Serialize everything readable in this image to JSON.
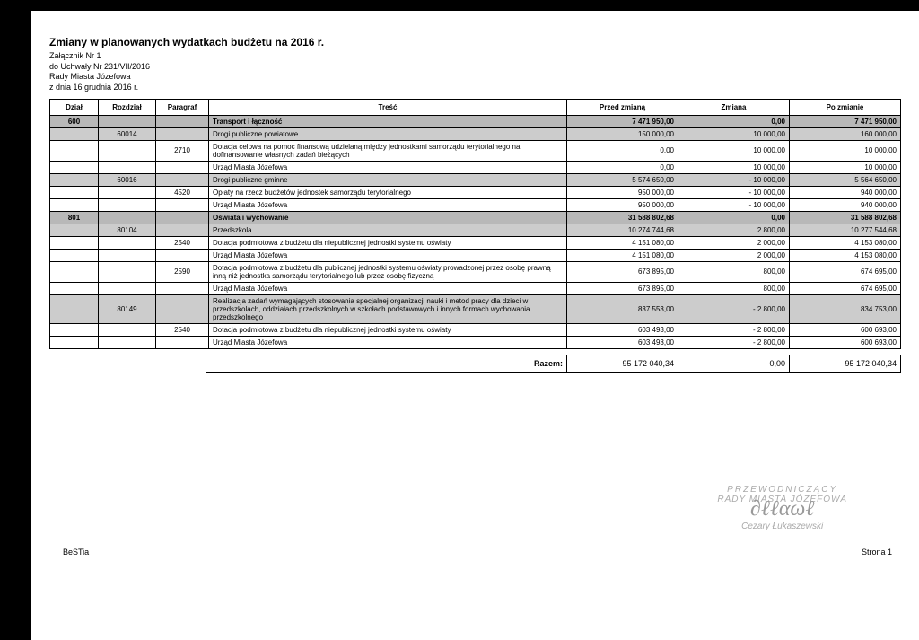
{
  "header": {
    "title": "Zmiany w planowanych wydatkach budżetu na 2016 r.",
    "lines": [
      "Załącznik Nr 1",
      "do Uchwały Nr 231/VII/2016",
      "Rady Miasta Józefowa",
      "z dnia 16 grudnia 2016 r."
    ]
  },
  "columns": {
    "dzial": "Dział",
    "rozdzial": "Rozdział",
    "paragraf": "Paragraf",
    "tresc": "Treść",
    "przed": "Przed zmianą",
    "zmiana": "Zmiana",
    "po": "Po zmianie"
  },
  "rows": [
    {
      "shade": "dark",
      "bold": true,
      "dzial": "600",
      "rozdzial": "",
      "paragraf": "",
      "tresc": "Transport i łączność",
      "przed": "7 471 950,00",
      "zmiana": "0,00",
      "po": "7 471 950,00"
    },
    {
      "shade": "med",
      "dzial": "",
      "rozdzial": "60014",
      "paragraf": "",
      "tresc": "Drogi publiczne powiatowe",
      "przed": "150 000,00",
      "zmiana": "10 000,00",
      "po": "160 000,00"
    },
    {
      "shade": "",
      "dzial": "",
      "rozdzial": "",
      "paragraf": "2710",
      "tresc": "Dotacja celowa na pomoc finansową udzielaną między jednostkami samorządu terytorialnego na dofinansowanie własnych zadań bieżących",
      "przed": "0,00",
      "zmiana": "10 000,00",
      "po": "10 000,00"
    },
    {
      "shade": "",
      "dzial": "",
      "rozdzial": "",
      "paragraf": "",
      "tresc": "Urząd Miasta Józefowa",
      "przed": "0,00",
      "zmiana": "10 000,00",
      "po": "10 000,00"
    },
    {
      "shade": "med",
      "dzial": "",
      "rozdzial": "60016",
      "paragraf": "",
      "tresc": "Drogi publiczne gminne",
      "przed": "5 574 650,00",
      "zmiana": "- 10 000,00",
      "po": "5 564 650,00"
    },
    {
      "shade": "",
      "dzial": "",
      "rozdzial": "",
      "paragraf": "4520",
      "tresc": "Opłaty na rzecz budżetów jednostek samorządu terytorialnego",
      "przed": "950 000,00",
      "zmiana": "- 10 000,00",
      "po": "940 000,00"
    },
    {
      "shade": "",
      "dzial": "",
      "rozdzial": "",
      "paragraf": "",
      "tresc": "Urząd Miasta Józefowa",
      "przed": "950 000,00",
      "zmiana": "- 10 000,00",
      "po": "940 000,00"
    },
    {
      "shade": "dark",
      "bold": true,
      "dzial": "801",
      "rozdzial": "",
      "paragraf": "",
      "tresc": "Oświata i wychowanie",
      "przed": "31 588 802,68",
      "zmiana": "0,00",
      "po": "31 588 802,68"
    },
    {
      "shade": "med",
      "dzial": "",
      "rozdzial": "80104",
      "paragraf": "",
      "tresc": "Przedszkola",
      "przed": "10 274 744,68",
      "zmiana": "2 800,00",
      "po": "10 277 544,68"
    },
    {
      "shade": "",
      "dzial": "",
      "rozdzial": "",
      "paragraf": "2540",
      "tresc": "Dotacja podmiotowa z budżetu dla niepublicznej jednostki systemu oświaty",
      "przed": "4 151 080,00",
      "zmiana": "2 000,00",
      "po": "4 153 080,00"
    },
    {
      "shade": "",
      "dzial": "",
      "rozdzial": "",
      "paragraf": "",
      "tresc": "Urząd Miasta Józefowa",
      "przed": "4 151 080,00",
      "zmiana": "2 000,00",
      "po": "4 153 080,00"
    },
    {
      "shade": "",
      "dzial": "",
      "rozdzial": "",
      "paragraf": "2590",
      "tresc": "Dotacja podmiotowa z budżetu dla publicznej jednostki systemu oświaty prowadzonej przez osobę prawną inną niż jednostka samorządu terytorialnego lub przez osobę fizyczną",
      "przed": "673 895,00",
      "zmiana": "800,00",
      "po": "674 695,00"
    },
    {
      "shade": "",
      "dzial": "",
      "rozdzial": "",
      "paragraf": "",
      "tresc": "Urząd Miasta Józefowa",
      "przed": "673 895,00",
      "zmiana": "800,00",
      "po": "674 695,00"
    },
    {
      "shade": "med",
      "dzial": "",
      "rozdzial": "80149",
      "paragraf": "",
      "tresc": "Realizacja zadań wymagających stosowania specjalnej organizacji nauki i metod pracy dla dzieci w przedszkolach, oddziałach przedszkolnych w szkołach podstawowych i innych formach wychowania przedszkolnego",
      "przed": "837 553,00",
      "zmiana": "- 2 800,00",
      "po": "834 753,00"
    },
    {
      "shade": "",
      "dzial": "",
      "rozdzial": "",
      "paragraf": "2540",
      "tresc": "Dotacja podmiotowa z budżetu dla niepublicznej jednostki systemu oświaty",
      "przed": "603 493,00",
      "zmiana": "- 2 800,00",
      "po": "600 693,00"
    },
    {
      "shade": "",
      "dzial": "",
      "rozdzial": "",
      "paragraf": "",
      "tresc": "Urząd Miasta Józefowa",
      "przed": "603 493,00",
      "zmiana": "- 2 800,00",
      "po": "600 693,00"
    }
  ],
  "totals": {
    "label": "Razem:",
    "przed": "95 172 040,34",
    "zmiana": "0,00",
    "po": "95 172 040,34"
  },
  "signature": {
    "line1": "PRZEWODNICZĄCY",
    "line2": "RADY MIASTA JÓZEFOWA",
    "name": "Cezary Łukaszewski"
  },
  "footer": {
    "left": "BeSTia",
    "right": "Strona 1"
  },
  "style": {
    "shade_dark": "#b8b8b8",
    "shade_med": "#cccccc",
    "border_color": "#000000",
    "title_fontsize": 12,
    "body_fontsize": 8
  }
}
